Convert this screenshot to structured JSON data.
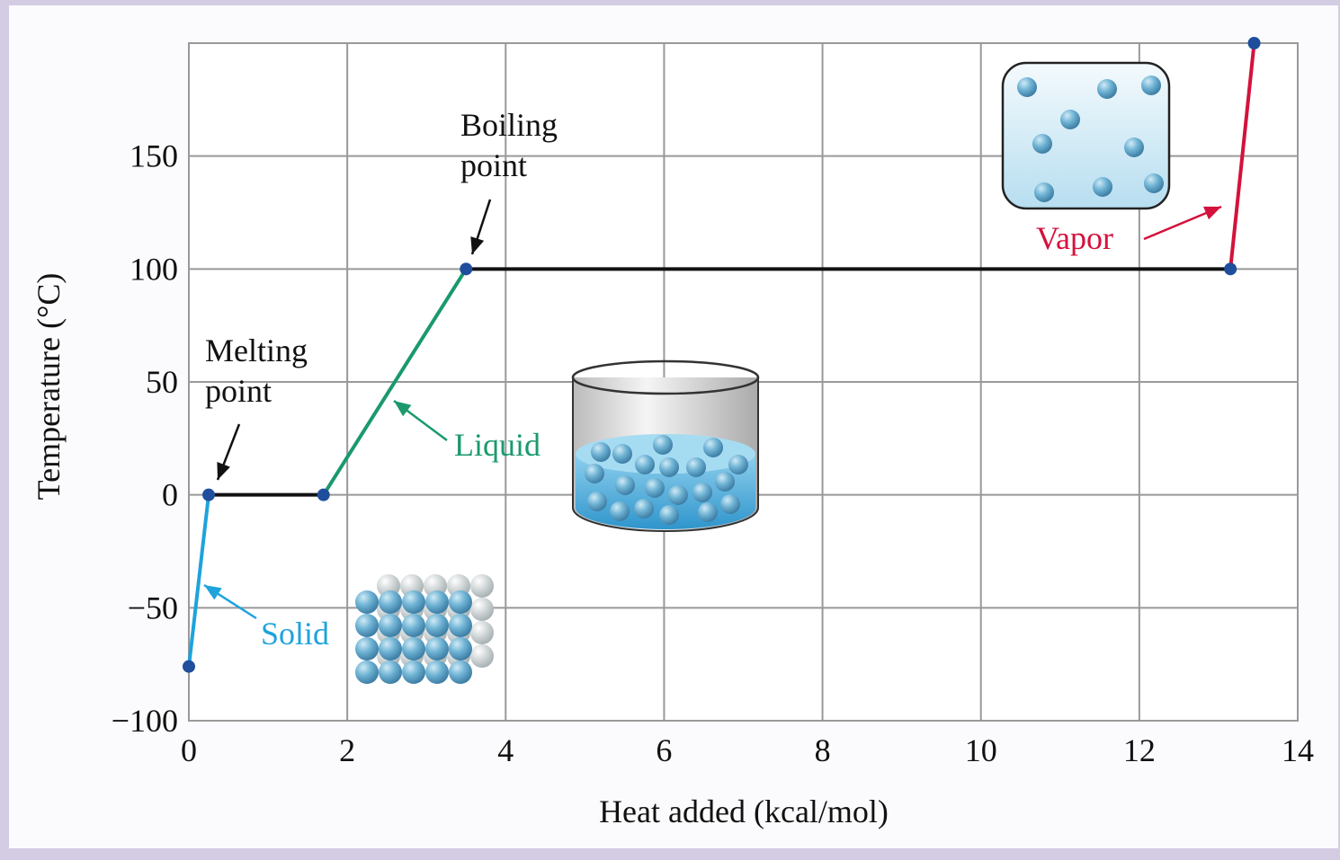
{
  "chart_data": {
    "type": "line",
    "x_label": "Heat added (kcal/mol)",
    "y_label": "Temperature (°C)",
    "x": [
      0,
      0.25,
      1.7,
      3.5,
      13.15,
      13.45
    ],
    "values": [
      -76,
      0,
      0,
      100,
      100,
      200
    ],
    "segment_colors": [
      "#1ea3dc",
      "#111111",
      "#1a9a6c",
      "#111111",
      "#d4123c"
    ],
    "point_color": "#1f4e9c",
    "xlim": [
      0,
      14
    ],
    "ylim": [
      -100,
      200
    ],
    "xticks": [
      0,
      2,
      4,
      6,
      8,
      10,
      12,
      14
    ],
    "yticks": [
      {
        "value": -100,
        "label": "−100"
      },
      {
        "value": -50,
        "label": "−50"
      },
      0,
      50,
      100,
      150
    ],
    "grid": true,
    "annotations": [
      {
        "lines": [
          "Solid"
        ],
        "color": "#1ea3dc"
      },
      {
        "lines": [
          "Liquid"
        ],
        "color": "#1a9a6c"
      },
      {
        "lines": [
          "Vapor"
        ],
        "color": "#d4123c"
      },
      {
        "lines": [
          "Melting",
          "point"
        ],
        "color": "#111111"
      },
      {
        "lines": [
          "Boiling",
          "point"
        ],
        "color": "#111111"
      }
    ]
  }
}
